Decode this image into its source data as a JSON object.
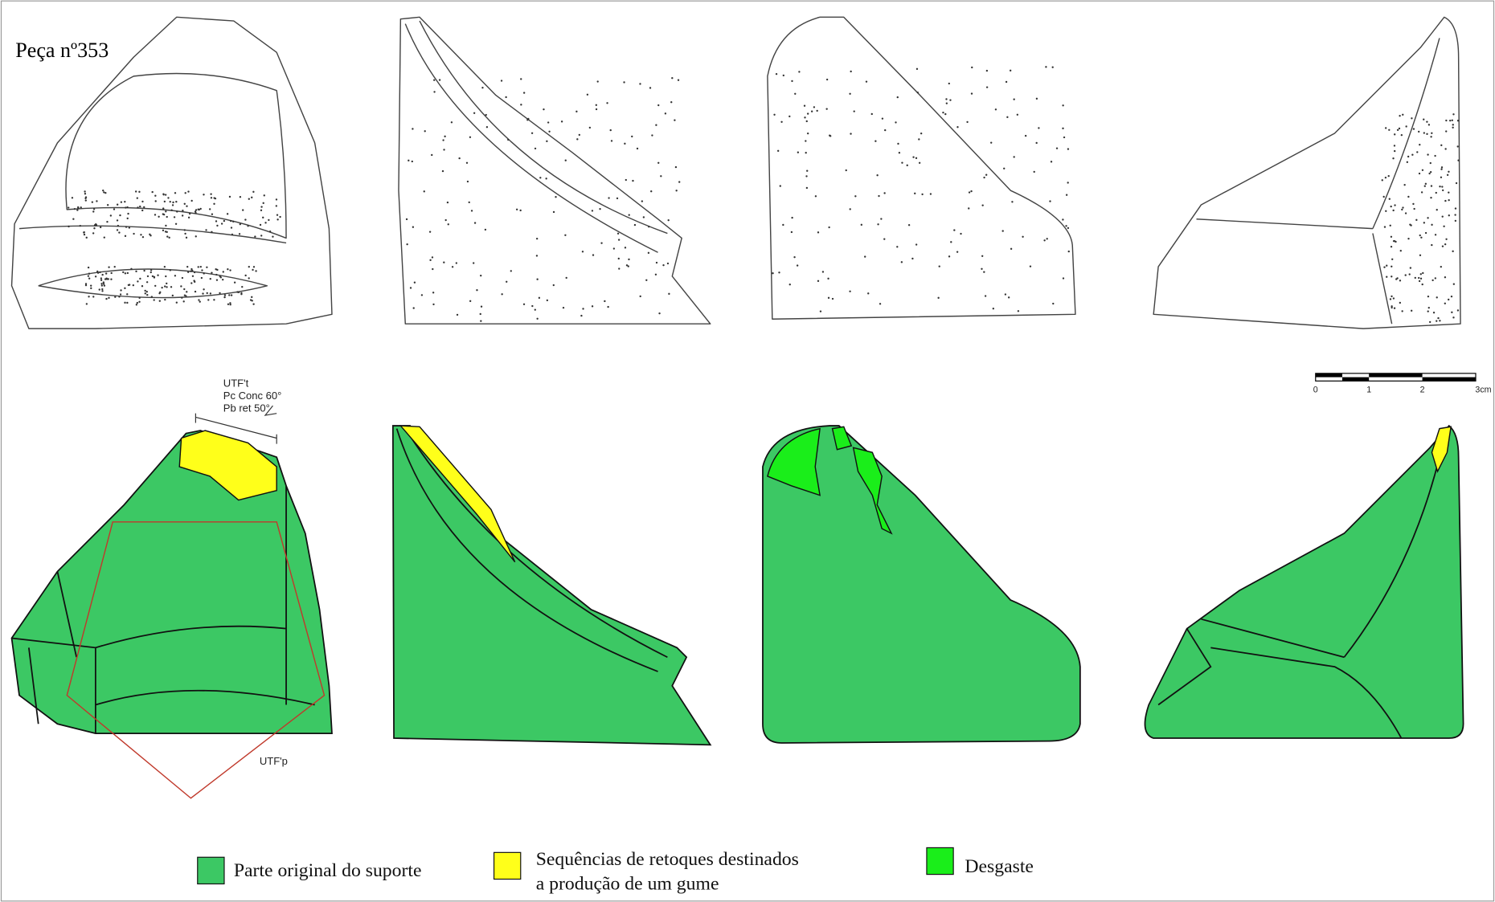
{
  "title": "Peça nº353",
  "annotations": {
    "top": [
      "UTF't",
      "Pc Conc 60°",
      "Pb ret 50°"
    ],
    "bottom": "UTF'p"
  },
  "scale": [
    "0",
    "1",
    "2",
    "3cm"
  ],
  "legend": [
    {
      "lines": [
        "Parte original do suporte"
      ]
    },
    {
      "lines": [
        "Sequências de retoques destinados",
        "a produção de um gume"
      ]
    },
    {
      "lines": [
        "Desgaste"
      ]
    }
  ]
}
